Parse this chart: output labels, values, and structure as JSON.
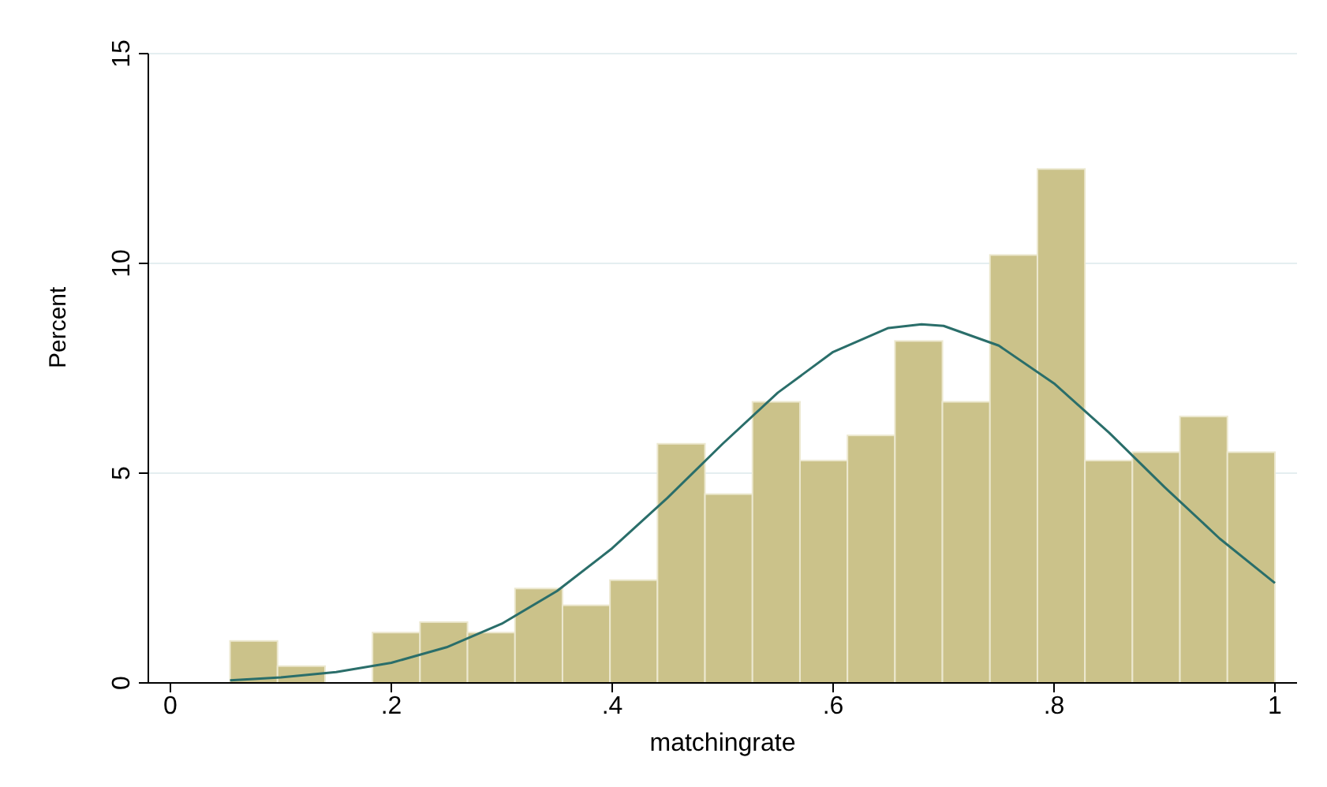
{
  "chart_data": {
    "type": "histogram",
    "xlabel": "matchingrate",
    "ylabel": "Percent",
    "bins": [
      0.054,
      0.097,
      0.14,
      0.183,
      0.226,
      0.269,
      0.312,
      0.355,
      0.398,
      0.441,
      0.484,
      0.527,
      0.57,
      0.613,
      0.656,
      0.699,
      0.742,
      0.785,
      0.828,
      0.871,
      0.914,
      0.957,
      1.0
    ],
    "values": [
      1.0,
      0.4,
      0,
      1.2,
      1.45,
      1.2,
      2.25,
      1.85,
      2.45,
      5.7,
      4.5,
      6.7,
      5.3,
      5.9,
      8.15,
      6.7,
      10.2,
      12.25,
      5.3,
      5.5,
      6.35,
      5.5
    ],
    "color": "#cbc28a",
    "series": [
      {
        "type": "line",
        "color": "#2a6e6a",
        "x": [
          0.054,
          0.1,
          0.15,
          0.2,
          0.25,
          0.3,
          0.35,
          0.4,
          0.45,
          0.5,
          0.55,
          0.6,
          0.65,
          0.68,
          0.7,
          0.75,
          0.8,
          0.85,
          0.9,
          0.95,
          1.0
        ],
        "values": [
          0.06,
          0.13,
          0.26,
          0.48,
          0.85,
          1.41,
          2.19,
          3.21,
          4.41,
          5.7,
          6.92,
          7.89,
          8.46,
          8.55,
          8.51,
          8.04,
          7.14,
          5.96,
          4.67,
          3.44,
          2.38
        ]
      }
    ],
    "xlim": [
      -0.02,
      1.02
    ],
    "xticks": [
      0,
      {
        "value": 0.2,
        "label": ".2"
      },
      {
        "value": 0.4,
        "label": ".4"
      },
      {
        "value": 0.6,
        "label": ".6"
      },
      {
        "value": 0.8,
        "label": ".8"
      },
      1
    ],
    "ylim": [
      0,
      15
    ],
    "yticks": [
      0,
      5,
      10,
      15
    ],
    "grid": "y"
  }
}
